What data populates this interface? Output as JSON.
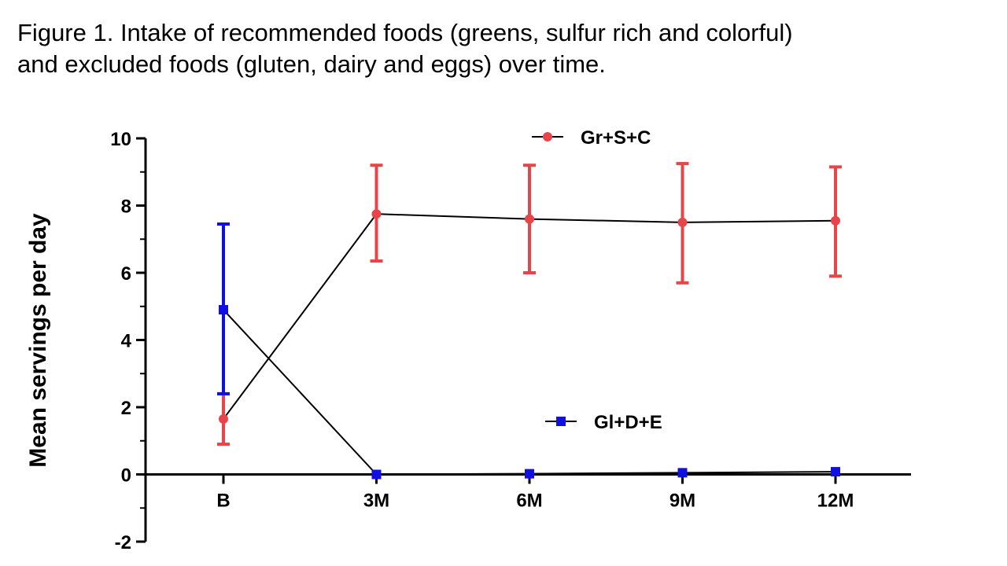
{
  "caption": {
    "line1": "Figure 1.  Intake of recommended foods (greens, sulfur rich and colorful)",
    "line2": "and excluded foods (gluten, dairy and eggs) over time."
  },
  "chart_data": {
    "type": "line",
    "categories": [
      "B",
      "3M",
      "6M",
      "9M",
      "12M"
    ],
    "ylabel": "Mean servings per day",
    "xlabel": "",
    "ylim": [
      -2,
      10
    ],
    "yticks": [
      -2,
      0,
      2,
      4,
      6,
      8,
      10
    ],
    "grid": false,
    "legend_placement": "inside-plot",
    "series": [
      {
        "name": "Gr+S+C",
        "marker": "circle",
        "color": "#e8454a",
        "line_color": "#000000",
        "values": [
          1.65,
          7.75,
          7.6,
          7.5,
          7.55
        ],
        "error_high": [
          2.4,
          9.2,
          9.2,
          9.25,
          9.15
        ],
        "error_low": [
          0.9,
          6.35,
          6.0,
          5.7,
          5.9
        ]
      },
      {
        "name": "Gl+D+E",
        "marker": "square",
        "color": "#1010e0",
        "line_color": "#000000",
        "values": [
          4.9,
          0.0,
          0.02,
          0.05,
          0.08
        ],
        "error_high": [
          7.45,
          null,
          null,
          null,
          null
        ],
        "error_low": [
          2.4,
          null,
          null,
          null,
          null
        ]
      }
    ]
  }
}
